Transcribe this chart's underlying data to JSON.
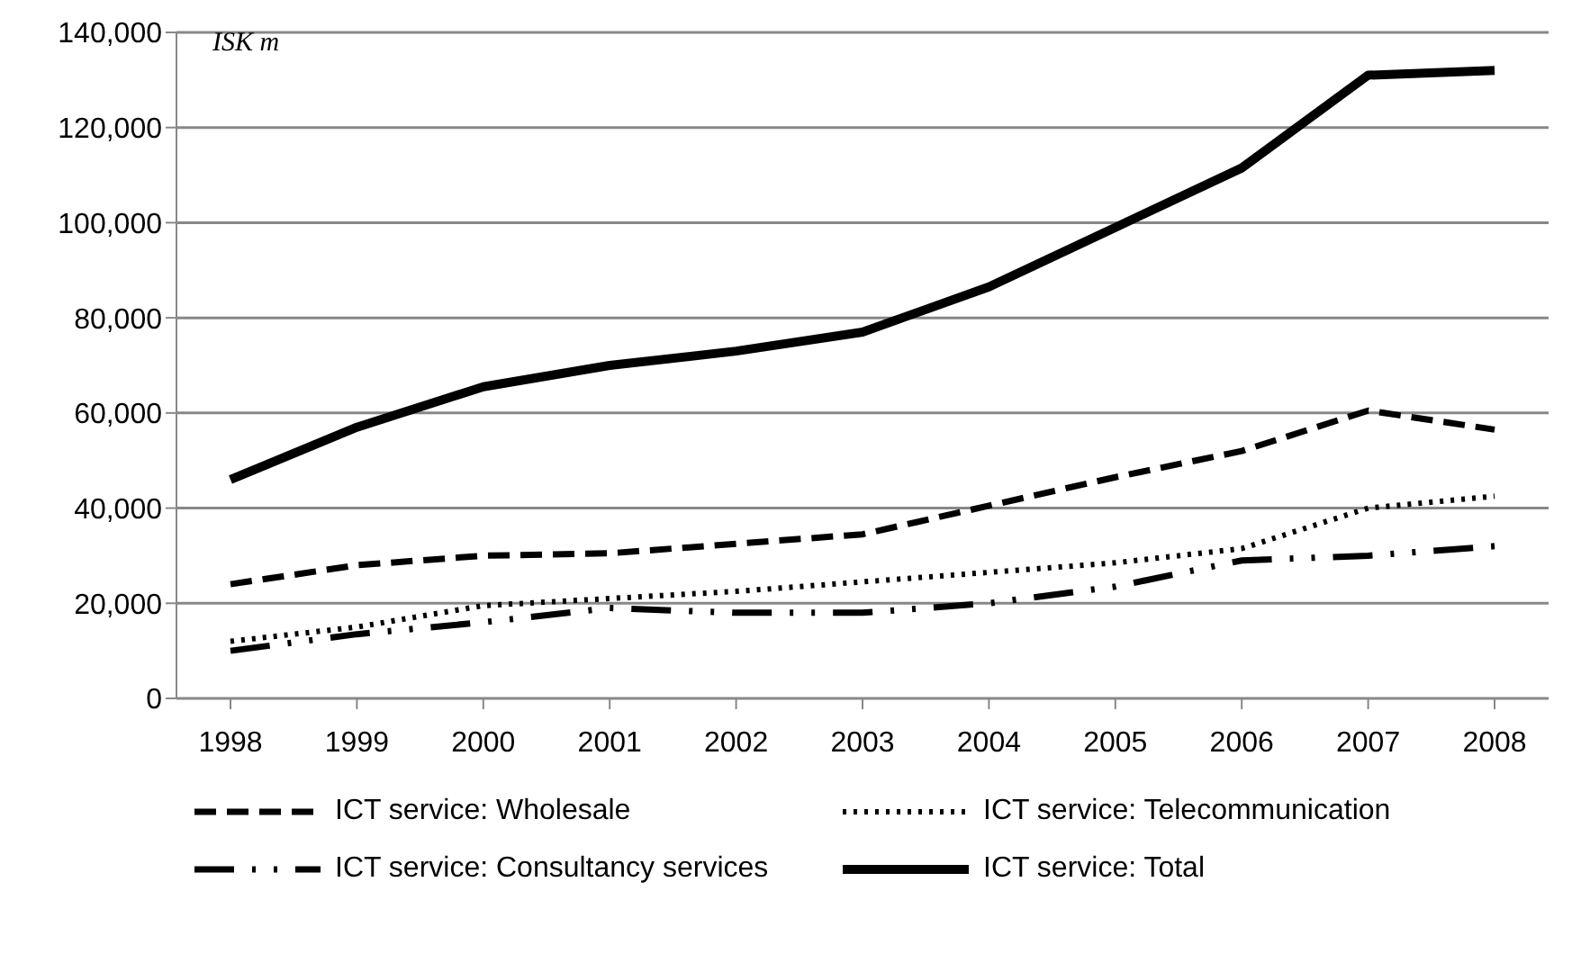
{
  "chart_data": {
    "type": "line",
    "ylabel": "ISK m",
    "categories": [
      "1998",
      "1999",
      "2000",
      "2001",
      "2002",
      "2003",
      "2004",
      "2005",
      "2006",
      "2007",
      "2008"
    ],
    "series": [
      {
        "name": "ICT service: Wholesale",
        "color": "#000000",
        "line_style": "dashed",
        "values": [
          24000,
          28000,
          30000,
          30500,
          32500,
          34500,
          40500,
          46500,
          52000,
          60500,
          56500
        ]
      },
      {
        "name": "ICT service: Telecommunication",
        "color": "#000000",
        "line_style": "dotted",
        "values": [
          12000,
          15000,
          19500,
          21000,
          22500,
          24500,
          26500,
          28500,
          31500,
          40000,
          42500
        ]
      },
      {
        "name": "ICT service: Consultancy services",
        "color": "#000000",
        "line_style": "dashdot",
        "values": [
          10000,
          13500,
          16000,
          19000,
          18000,
          18000,
          20000,
          23500,
          29000,
          30000,
          32000
        ]
      },
      {
        "name": "ICT service: Total",
        "color": "#000000",
        "line_style": "solid",
        "values": [
          46000,
          57000,
          65500,
          70000,
          73000,
          77000,
          86500,
          99000,
          111500,
          131000,
          132000
        ]
      }
    ],
    "ylim": [
      0,
      140000
    ],
    "yticks": [
      0,
      {
        "value": 20000,
        "label": "20,000"
      },
      {
        "value": 40000,
        "label": "40,000"
      },
      {
        "value": 60000,
        "label": "60,000"
      },
      {
        "value": 80000,
        "label": "80,000"
      },
      {
        "value": 100000,
        "label": "100,000"
      },
      {
        "value": 120000,
        "label": "120,000"
      },
      {
        "value": 140000,
        "label": "140,000"
      }
    ],
    "grid": "y",
    "legend": "bottom",
    "marker": "none"
  }
}
